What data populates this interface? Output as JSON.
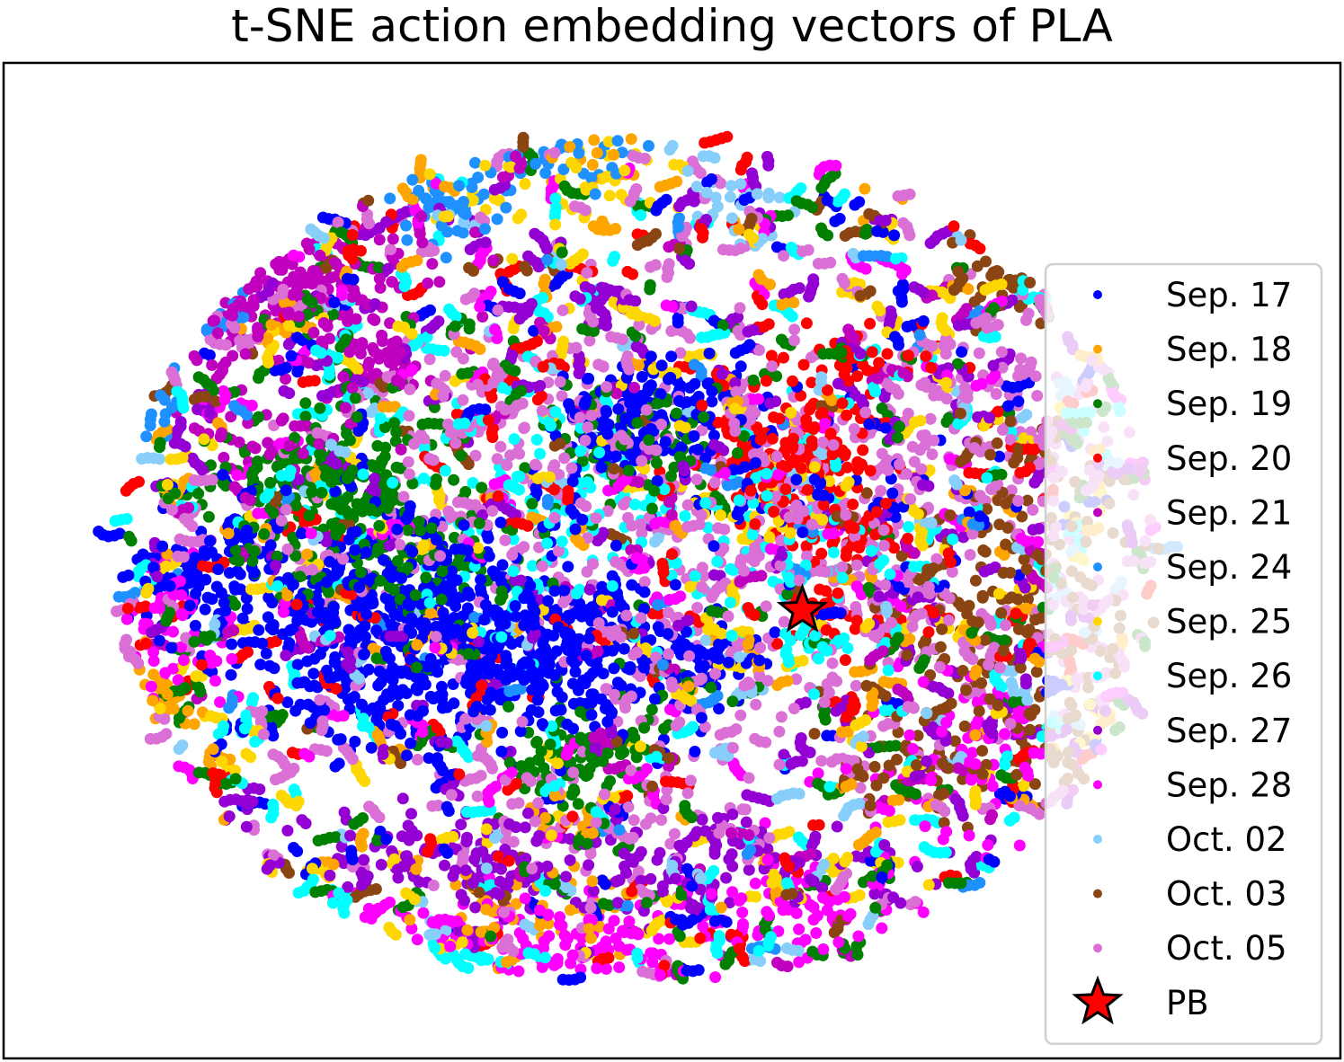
{
  "chart_data": {
    "type": "scatter",
    "title": "t-SNE action embedding vectors of PLA",
    "xlabel": "",
    "ylabel": "",
    "axes_ticks_visible": false,
    "grid": false,
    "legend_placement": "right",
    "xlim": [
      -100,
      100
    ],
    "ylim": [
      -100,
      100
    ],
    "series": [
      {
        "name": "Sep. 17",
        "color": "#0000ff",
        "marker": "dot",
        "clusters": [
          [
            -40,
            -8,
            14,
            8,
            320
          ],
          [
            -20,
            -20,
            12,
            8,
            330
          ],
          [
            -5,
            30,
            8,
            6,
            160
          ],
          [
            -45,
            -25,
            7,
            6,
            120
          ],
          [
            -70,
            -5,
            6,
            5,
            80
          ],
          [
            5,
            -20,
            5,
            4,
            60
          ],
          [
            30,
            15,
            10,
            10,
            40
          ]
        ],
        "background_count": 140
      },
      {
        "name": "Sep. 18",
        "color": "#ffa500",
        "marker": "dot",
        "clusters": [
          [
            -80,
            -30,
            4,
            4,
            55
          ],
          [
            45,
            75,
            6,
            3,
            35
          ],
          [
            -12,
            82,
            6,
            4,
            25
          ],
          [
            -20,
            -70,
            8,
            5,
            40
          ]
        ],
        "background_count": 110
      },
      {
        "name": "Sep. 19",
        "color": "#008000",
        "marker": "dot",
        "clusters": [
          [
            -50,
            15,
            10,
            10,
            230
          ],
          [
            -15,
            -38,
            6,
            6,
            90
          ],
          [
            -5,
            25,
            8,
            6,
            90
          ],
          [
            -38,
            0,
            8,
            6,
            70
          ]
        ],
        "background_count": 160
      },
      {
        "name": "Sep. 20",
        "color": "#ff0000",
        "marker": "dot",
        "clusters": [
          [
            18,
            22,
            7,
            6,
            160
          ],
          [
            27,
            40,
            6,
            3,
            40
          ],
          [
            26,
            5,
            5,
            3,
            45
          ],
          [
            25,
            -10,
            5,
            4,
            30
          ]
        ],
        "background_count": 120
      },
      {
        "name": "Sep. 21",
        "color": "#bf00bf",
        "marker": "dot",
        "clusters": [
          [
            -60,
            55,
            12,
            7,
            260
          ],
          [
            -45,
            40,
            6,
            4,
            50
          ],
          [
            -60,
            25,
            8,
            5,
            40
          ]
        ],
        "background_count": 60
      },
      {
        "name": "Sep. 24",
        "color": "#1e90ff",
        "marker": "dot",
        "clusters": [
          [
            -35,
            72,
            4,
            4,
            50
          ],
          [
            -17,
            82,
            7,
            4,
            60
          ],
          [
            -78,
            30,
            3,
            5,
            35
          ],
          [
            -68,
            50,
            3,
            4,
            25
          ]
        ],
        "background_count": 35
      },
      {
        "name": "Sep. 25",
        "color": "#ffd700",
        "marker": "dot",
        "clusters": [
          [
            -15,
            75,
            10,
            8,
            55
          ],
          [
            15,
            10,
            6,
            4,
            30
          ]
        ],
        "background_count": 150
      },
      {
        "name": "Sep. 26",
        "color": "#00ffff",
        "marker": "dot",
        "clusters": [
          [
            -20,
            12,
            18,
            10,
            120
          ],
          [
            15,
            -5,
            14,
            10,
            60
          ]
        ],
        "background_count": 150
      },
      {
        "name": "Sep. 27",
        "color": "#9400d3",
        "marker": "dot",
        "clusters": [
          [
            -30,
            -60,
            14,
            6,
            130
          ],
          [
            10,
            -62,
            16,
            6,
            80
          ]
        ],
        "background_count": 200
      },
      {
        "name": "Sep. 28",
        "color": "#ff00ff",
        "marker": "dot",
        "clusters": [
          [
            -50,
            -75,
            15,
            4,
            120
          ],
          [
            -15,
            -77,
            12,
            5,
            100
          ],
          [
            -75,
            -15,
            5,
            8,
            60
          ],
          [
            20,
            -70,
            12,
            5,
            80
          ],
          [
            45,
            -40,
            10,
            10,
            80
          ]
        ],
        "background_count": 90
      },
      {
        "name": "Oct. 02",
        "color": "#87cefa",
        "marker": "dot",
        "clusters": [
          [
            10,
            72,
            5,
            3,
            25
          ]
        ],
        "background_count": 80
      },
      {
        "name": "Oct. 03",
        "color": "#8b4513",
        "marker": "dot",
        "clusters": [
          [
            48,
            -10,
            10,
            12,
            160
          ],
          [
            35,
            -40,
            8,
            6,
            60
          ],
          [
            50,
            60,
            6,
            6,
            50
          ],
          [
            63,
            -35,
            8,
            6,
            60
          ],
          [
            55,
            15,
            6,
            6,
            40
          ]
        ],
        "background_count": 60
      },
      {
        "name": "Oct. 05",
        "color": "#da70d6",
        "marker": "dot",
        "clusters": [
          [
            20,
            0,
            25,
            20,
            420
          ],
          [
            -20,
            20,
            15,
            15,
            160
          ],
          [
            45,
            30,
            12,
            12,
            120
          ],
          [
            -10,
            -50,
            15,
            8,
            80
          ]
        ],
        "background_count": 200
      },
      {
        "name": "PB",
        "color": "#ff0000",
        "marker": "star",
        "points": [
          [
            19.5,
            -10
          ]
        ]
      }
    ]
  }
}
